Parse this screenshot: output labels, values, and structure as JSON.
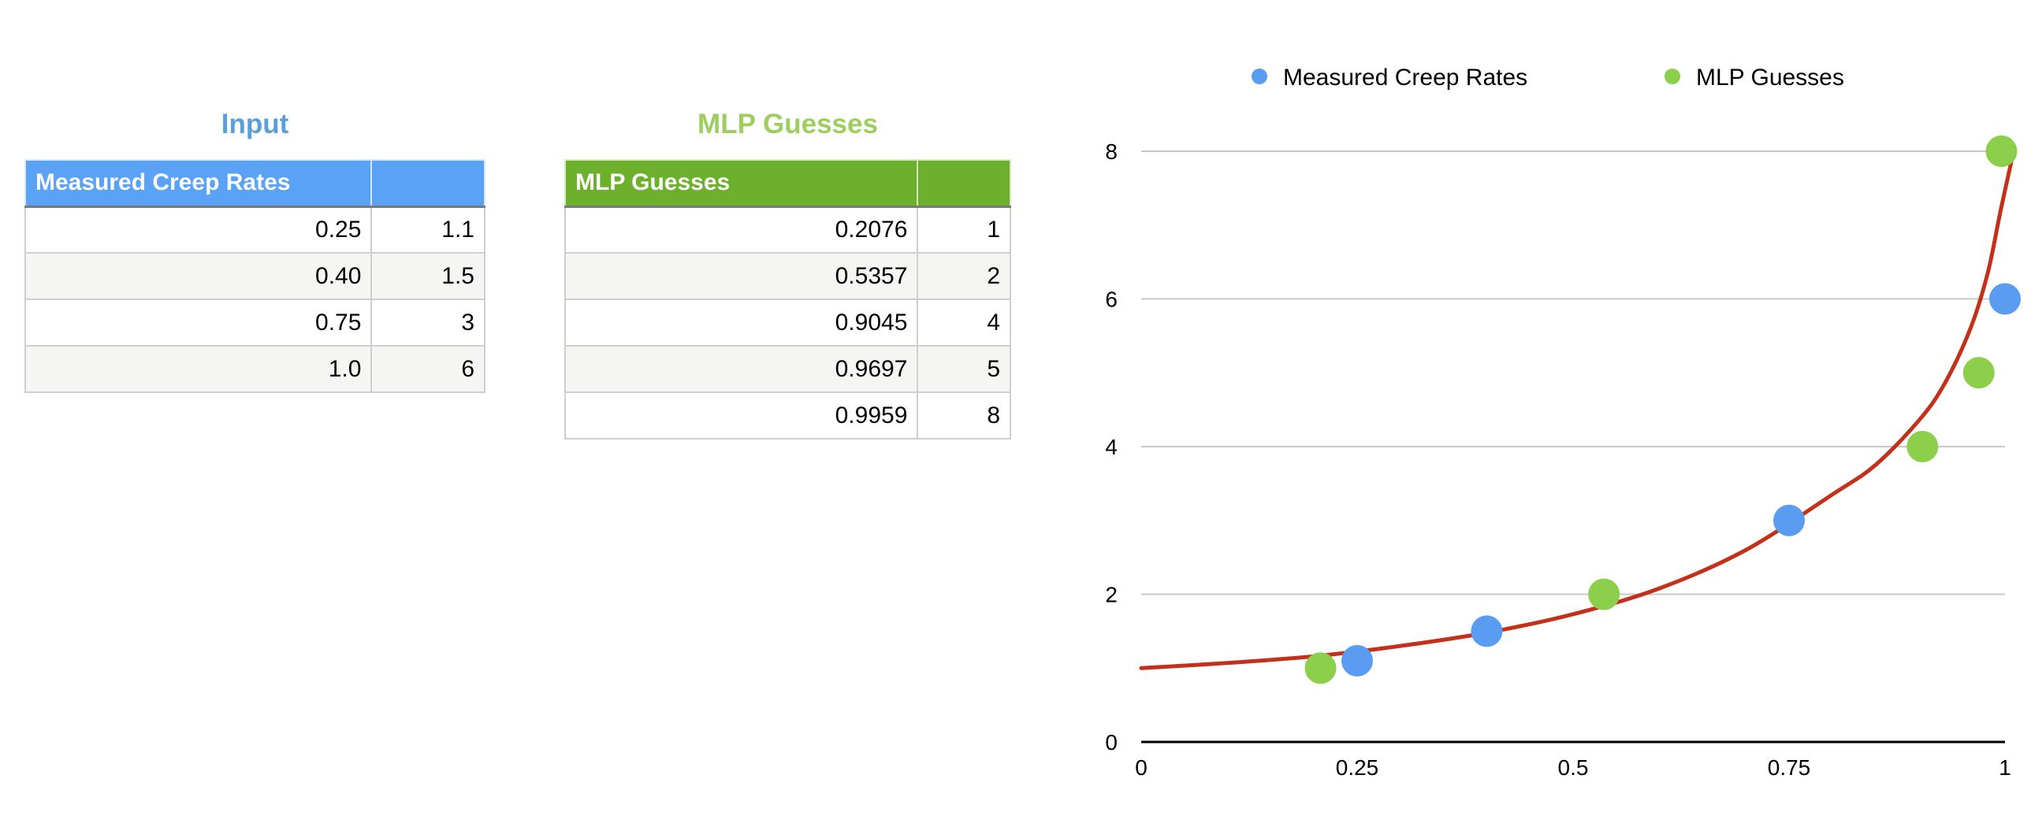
{
  "tables": {
    "input": {
      "title": "Input",
      "title_color": "#5a9fd6",
      "header_color": "#5aa2f6",
      "header": [
        "Measured Creep Rates",
        ""
      ],
      "rows": [
        [
          "0.25",
          "1.1"
        ],
        [
          "0.40",
          "1.5"
        ],
        [
          "0.75",
          "3"
        ],
        [
          "1.0",
          "6"
        ]
      ]
    },
    "mlp": {
      "title": "MLP Guesses",
      "title_color": "#9dcf5f",
      "header_color": "#6db02c",
      "header": [
        "MLP Guesses",
        ""
      ],
      "rows": [
        [
          "0.2076",
          "1"
        ],
        [
          "0.5357",
          "2"
        ],
        [
          "0.9045",
          "4"
        ],
        [
          "0.9697",
          "5"
        ],
        [
          "0.9959",
          "8"
        ]
      ]
    }
  },
  "chart_data": {
    "type": "scatter",
    "title": "",
    "xlabel": "",
    "ylabel": "",
    "xlim": [
      0,
      1
    ],
    "ylim": [
      0,
      8
    ],
    "x_ticks": [
      "0",
      "0.25",
      "0.5",
      "0.75",
      "1"
    ],
    "y_ticks": [
      "0",
      "2",
      "4",
      "6",
      "8"
    ],
    "grid": "horizontal",
    "legend_position": "top",
    "series": [
      {
        "name": "Measured Creep Rates",
        "color": "#5a9cf2",
        "points": [
          [
            0.25,
            1.1
          ],
          [
            0.4,
            1.5
          ],
          [
            0.75,
            3
          ],
          [
            1.0,
            6
          ]
        ]
      },
      {
        "name": "MLP Guesses",
        "color": "#8ccf4a",
        "points": [
          [
            0.2076,
            1
          ],
          [
            0.5357,
            2
          ],
          [
            0.9045,
            4
          ],
          [
            0.9697,
            5
          ],
          [
            0.9959,
            8
          ]
        ]
      }
    ],
    "curve": {
      "color": "#c0260e",
      "points": [
        [
          0.0,
          1.0
        ],
        [
          0.1,
          1.07
        ],
        [
          0.2,
          1.16
        ],
        [
          0.3,
          1.3
        ],
        [
          0.4,
          1.48
        ],
        [
          0.5,
          1.73
        ],
        [
          0.6,
          2.08
        ],
        [
          0.7,
          2.6
        ],
        [
          0.8,
          3.35
        ],
        [
          0.85,
          3.75
        ],
        [
          0.9,
          4.35
        ],
        [
          0.93,
          4.85
        ],
        [
          0.96,
          5.6
        ],
        [
          0.98,
          6.35
        ],
        [
          0.995,
          7.2
        ],
        [
          1.01,
          8.0
        ]
      ]
    }
  }
}
